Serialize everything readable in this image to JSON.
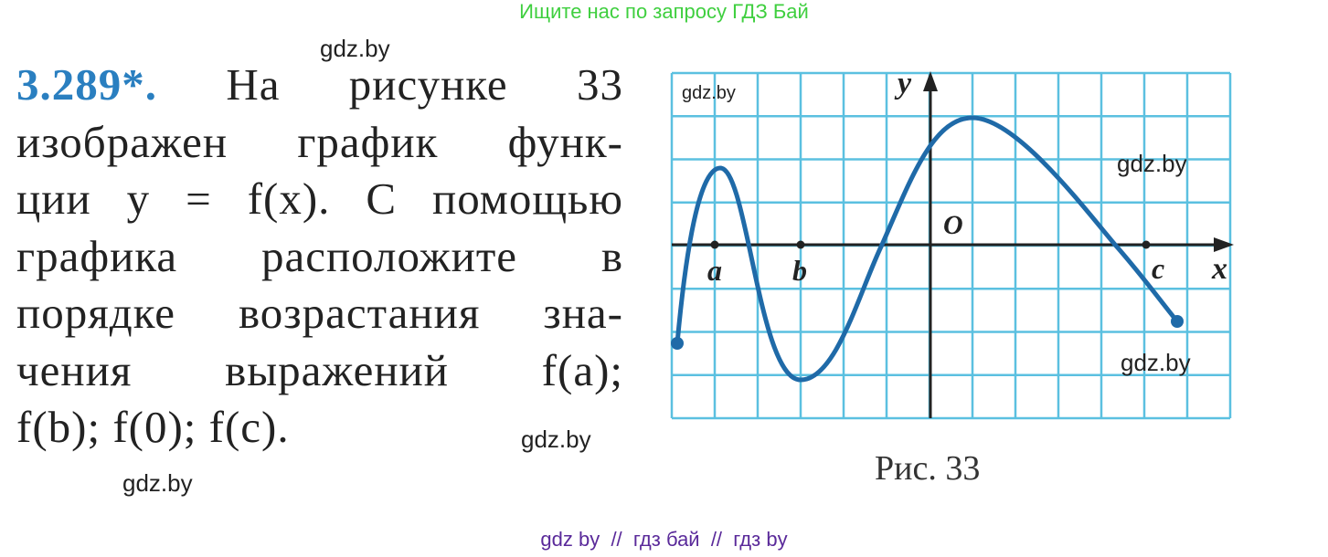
{
  "header": {
    "banner": "Ищите нас по запросу ГДЗ Бай"
  },
  "watermarks": [
    "gdz.by",
    "gdz.by",
    "gdz.by",
    "gdz.by",
    "gdz.by",
    "gdz.by"
  ],
  "problem": {
    "number": "3.289*.",
    "lines": [
      "На рисунке 33",
      "изображен график функ-",
      "ции  y = f(x). С помощью",
      "графика расположите в",
      "порядке возрастания зна-",
      "чения выражений f(a);",
      "f(b);  f(0);  f(c)."
    ]
  },
  "figure": {
    "axis_y": "y",
    "axis_x": "x",
    "origin": "O",
    "point_a": "a",
    "point_b": "b",
    "point_c": "c",
    "caption": "Рис. 33"
  },
  "footer": "gdz by  //  гдз бай  //  гдз by"
}
